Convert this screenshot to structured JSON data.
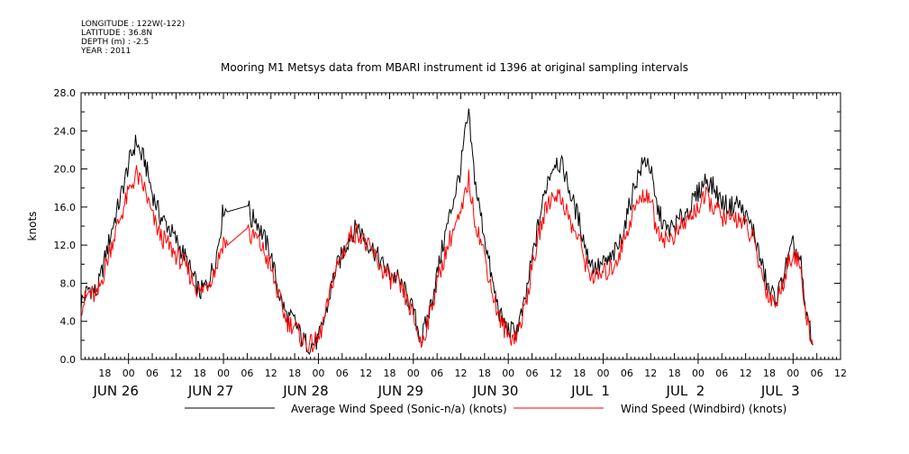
{
  "header_meta": {
    "longitude": "LONGITUDE : 122W(-122)",
    "latitude": "LATITUDE : 36.8N",
    "depth": "DEPTH (m) : -2.5",
    "year": "YEAR : 2011"
  },
  "chart_data": {
    "type": "line",
    "title": "Mooring M1 Metsys data from MBARI instrument id 1396 at original sampling intervals",
    "ylabel": "knots",
    "xlabel": "",
    "ylim": [
      0,
      28
    ],
    "yticks": [
      "0.0",
      "4.0",
      "8.0",
      "12.0",
      "16.0",
      "20.0",
      "24.0",
      "28.0"
    ],
    "xlim_hours": [
      12,
      204
    ],
    "hour_ticks": [
      "18",
      "00",
      "06",
      "12",
      "18",
      "00",
      "06",
      "12",
      "18",
      "00",
      "06",
      "12",
      "18",
      "00",
      "06",
      "12",
      "18",
      "00",
      "06",
      "12",
      "18",
      "00",
      "06",
      "12",
      "18",
      "00",
      "06",
      "12",
      "18",
      "00",
      "06",
      "12"
    ],
    "date_labels": [
      "JUN 26",
      "JUN 27",
      "JUN 28",
      "JUN 29",
      "JUN 30",
      "JUL  1",
      "JUL  2",
      "JUL  3"
    ],
    "grid": false,
    "legend_position": "bottom",
    "series": [
      {
        "name": "Average Wind Speed (Sonic-n/a) (knots)",
        "color": "#000000",
        "points": [
          [
            12,
            6.0
          ],
          [
            14,
            7.5
          ],
          [
            16,
            7.0
          ],
          [
            18,
            10.5
          ],
          [
            20,
            14.0
          ],
          [
            22,
            17.0
          ],
          [
            24,
            20.5
          ],
          [
            26,
            23.0
          ],
          [
            27,
            21.5
          ],
          [
            28,
            21.0
          ],
          [
            30,
            17.5
          ],
          [
            32,
            15.0
          ],
          [
            34,
            14.0
          ],
          [
            36,
            12.5
          ],
          [
            38,
            11.0
          ],
          [
            40,
            9.0
          ],
          [
            42,
            7.0
          ],
          [
            44,
            8.0
          ],
          [
            46,
            10.5
          ],
          [
            47,
            13.0
          ],
          [
            48,
            16.0
          ],
          [
            49,
            15.5
          ],
          [
            54,
            17.0
          ],
          [
            55,
            14.5
          ],
          [
            56,
            15.0
          ],
          [
            58,
            13.0
          ],
          [
            60,
            11.0
          ],
          [
            62,
            7.0
          ],
          [
            64,
            4.5
          ],
          [
            66,
            4.0
          ],
          [
            68,
            2.0
          ],
          [
            70,
            1.5
          ],
          [
            72,
            2.0
          ],
          [
            74,
            5.0
          ],
          [
            76,
            9.0
          ],
          [
            78,
            11.0
          ],
          [
            80,
            13.0
          ],
          [
            82,
            14.0
          ],
          [
            84,
            12.5
          ],
          [
            86,
            11.5
          ],
          [
            88,
            10.0
          ],
          [
            90,
            9.0
          ],
          [
            92,
            8.5
          ],
          [
            94,
            7.0
          ],
          [
            96,
            5.0
          ],
          [
            98,
            2.0
          ],
          [
            100,
            5.0
          ],
          [
            102,
            9.0
          ],
          [
            104,
            13.0
          ],
          [
            106,
            16.5
          ],
          [
            108,
            20.0
          ],
          [
            109,
            23.5
          ],
          [
            110,
            25.5
          ],
          [
            111,
            21.0
          ],
          [
            112,
            17.5
          ],
          [
            114,
            13.0
          ],
          [
            116,
            8.0
          ],
          [
            118,
            4.5
          ],
          [
            120,
            3.0
          ],
          [
            122,
            3.0
          ],
          [
            124,
            5.5
          ],
          [
            126,
            10.5
          ],
          [
            128,
            15.0
          ],
          [
            130,
            19.0
          ],
          [
            132,
            21.0
          ],
          [
            134,
            20.0
          ],
          [
            136,
            17.0
          ],
          [
            138,
            14.5
          ],
          [
            140,
            11.0
          ],
          [
            142,
            9.5
          ],
          [
            144,
            10.0
          ],
          [
            146,
            10.5
          ],
          [
            148,
            12.0
          ],
          [
            150,
            15.0
          ],
          [
            152,
            18.5
          ],
          [
            154,
            20.5
          ],
          [
            155,
            21.0
          ],
          [
            156,
            20.0
          ],
          [
            157,
            17.0
          ],
          [
            158,
            15.5
          ],
          [
            160,
            13.5
          ],
          [
            162,
            14.0
          ],
          [
            164,
            15.0
          ],
          [
            166,
            16.0
          ],
          [
            168,
            17.5
          ],
          [
            170,
            19.0
          ],
          [
            172,
            18.0
          ],
          [
            174,
            16.5
          ],
          [
            176,
            16.0
          ],
          [
            178,
            16.5
          ],
          [
            180,
            15.0
          ],
          [
            182,
            13.5
          ],
          [
            184,
            10.0
          ],
          [
            186,
            7.0
          ],
          [
            188,
            6.5
          ],
          [
            190,
            9.5
          ],
          [
            192,
            12.0
          ],
          [
            194,
            10.0
          ],
          [
            195,
            5.0
          ],
          [
            196,
            4.0
          ],
          [
            197,
            1.5
          ]
        ]
      },
      {
        "name": "Wind Speed (Windbird) (knots)",
        "color": "#ff0000",
        "points": [
          [
            12,
            5.5
          ],
          [
            14,
            7.0
          ],
          [
            16,
            6.5
          ],
          [
            18,
            9.5
          ],
          [
            20,
            12.5
          ],
          [
            22,
            15.0
          ],
          [
            24,
            17.5
          ],
          [
            26,
            19.5
          ],
          [
            27,
            18.5
          ],
          [
            28,
            18.0
          ],
          [
            30,
            15.0
          ],
          [
            32,
            13.0
          ],
          [
            34,
            12.0
          ],
          [
            36,
            11.0
          ],
          [
            38,
            10.0
          ],
          [
            40,
            8.5
          ],
          [
            42,
            7.0
          ],
          [
            44,
            8.0
          ],
          [
            46,
            9.5
          ],
          [
            47,
            11.0
          ],
          [
            48,
            12.5
          ],
          [
            49,
            12.0
          ],
          [
            54,
            14.5
          ],
          [
            55,
            12.5
          ],
          [
            56,
            13.0
          ],
          [
            58,
            11.5
          ],
          [
            60,
            9.5
          ],
          [
            62,
            6.5
          ],
          [
            64,
            4.0
          ],
          [
            66,
            3.5
          ],
          [
            68,
            2.0
          ],
          [
            70,
            1.5
          ],
          [
            72,
            2.0
          ],
          [
            74,
            5.0
          ],
          [
            76,
            9.0
          ],
          [
            78,
            11.0
          ],
          [
            80,
            13.0
          ],
          [
            82,
            13.5
          ],
          [
            84,
            12.0
          ],
          [
            86,
            11.0
          ],
          [
            88,
            9.5
          ],
          [
            90,
            8.5
          ],
          [
            92,
            8.0
          ],
          [
            94,
            6.5
          ],
          [
            96,
            4.5
          ],
          [
            98,
            1.5
          ],
          [
            100,
            4.5
          ],
          [
            102,
            8.0
          ],
          [
            104,
            11.0
          ],
          [
            106,
            13.5
          ],
          [
            108,
            15.0
          ],
          [
            109,
            17.0
          ],
          [
            110,
            19.0
          ],
          [
            111,
            16.0
          ],
          [
            112,
            14.0
          ],
          [
            114,
            11.0
          ],
          [
            116,
            7.0
          ],
          [
            118,
            4.0
          ],
          [
            120,
            2.5
          ],
          [
            122,
            2.5
          ],
          [
            124,
            5.0
          ],
          [
            126,
            9.5
          ],
          [
            128,
            13.5
          ],
          [
            130,
            16.5
          ],
          [
            132,
            17.5
          ],
          [
            134,
            16.5
          ],
          [
            136,
            14.0
          ],
          [
            138,
            12.5
          ],
          [
            140,
            9.5
          ],
          [
            142,
            8.5
          ],
          [
            144,
            9.0
          ],
          [
            146,
            9.5
          ],
          [
            148,
            11.0
          ],
          [
            150,
            13.5
          ],
          [
            152,
            16.0
          ],
          [
            154,
            17.0
          ],
          [
            155,
            17.5
          ],
          [
            156,
            17.0
          ],
          [
            157,
            14.5
          ],
          [
            158,
            13.5
          ],
          [
            160,
            12.5
          ],
          [
            162,
            13.0
          ],
          [
            164,
            14.0
          ],
          [
            166,
            15.0
          ],
          [
            168,
            16.0
          ],
          [
            170,
            17.0
          ],
          [
            172,
            16.0
          ],
          [
            174,
            15.0
          ],
          [
            176,
            14.5
          ],
          [
            178,
            15.0
          ],
          [
            180,
            14.0
          ],
          [
            182,
            12.5
          ],
          [
            184,
            9.0
          ],
          [
            186,
            6.5
          ],
          [
            188,
            6.0
          ],
          [
            190,
            9.0
          ],
          [
            192,
            11.5
          ],
          [
            194,
            9.5
          ],
          [
            195,
            4.5
          ],
          [
            196,
            3.5
          ],
          [
            197,
            1.5
          ]
        ]
      }
    ]
  }
}
